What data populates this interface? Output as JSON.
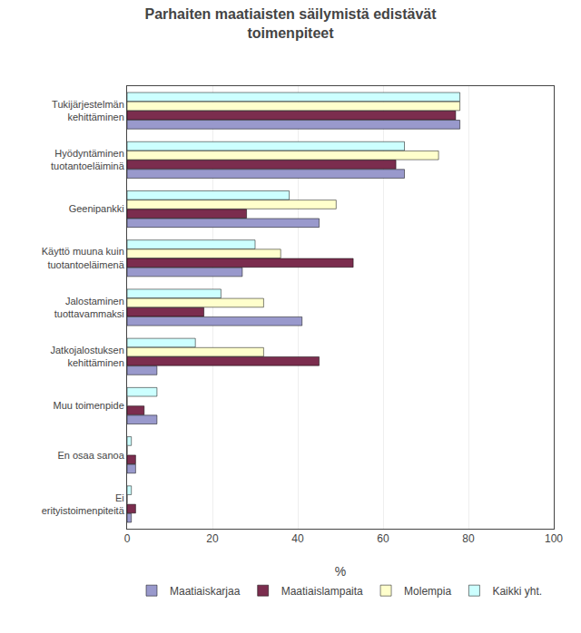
{
  "chart_data": {
    "type": "bar",
    "orientation": "horizontal",
    "title": "Parhaiten maatiaisten säilymistä edistävät\ntoimenpiteet",
    "categories": [
      "Tukijärjestelmän\nkehittäminen",
      "Hyödyntäminen\ntuotantoeläiminä",
      "Geenipankki",
      "Käyttö muuna kuin\ntuotantoeläimenä",
      "Jalostaminen\ntuottavammaksi",
      "Jatkojalostuksen\nkehittäminen",
      "Muu toimenpide",
      "En osaa sanoa",
      "Ei\nerityistoimenpiteitä"
    ],
    "series": [
      {
        "name": "Kaikki yht.",
        "color": "#CCFFFF",
        "values": [
          78,
          65,
          38,
          30,
          22,
          16,
          7,
          1,
          1
        ]
      },
      {
        "name": "Molempia",
        "color": "#FFFFCC",
        "values": [
          78,
          73,
          49,
          36,
          32,
          32,
          0,
          0,
          0
        ]
      },
      {
        "name": "Maatiaislampaita",
        "color": "#7B2D4E",
        "values": [
          77,
          63,
          28,
          53,
          18,
          45,
          4,
          2,
          2
        ]
      },
      {
        "name": "Maatiaiskarjaa",
        "color": "#9999CC",
        "values": [
          78,
          65,
          45,
          27,
          41,
          7,
          7,
          2,
          1
        ]
      }
    ],
    "xlabel": "%",
    "xlim": [
      0,
      100
    ],
    "xticks": [
      0,
      20,
      40,
      60,
      80,
      100
    ],
    "grid": true,
    "legend": "bottom"
  }
}
